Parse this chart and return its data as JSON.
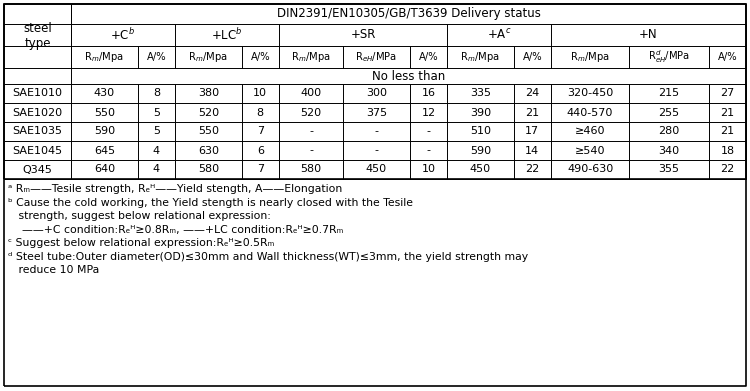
{
  "title": "DIN2391/EN10305/GB/T3639 Delivery status",
  "no_less_than": "No less than",
  "data_rows": [
    [
      "SAE1010",
      "430",
      "8",
      "380",
      "10",
      "400",
      "300",
      "16",
      "335",
      "24",
      "320-450",
      "215",
      "27"
    ],
    [
      "SAE1020",
      "550",
      "5",
      "520",
      "8",
      "520",
      "375",
      "12",
      "390",
      "21",
      "440-570",
      "255",
      "21"
    ],
    [
      "SAE1035",
      "590",
      "5",
      "550",
      "7",
      "-",
      "-",
      "-",
      "510",
      "17",
      "≥460",
      "280",
      "21"
    ],
    [
      "SAE1045",
      "645",
      "4",
      "630",
      "6",
      "-",
      "-",
      "-",
      "590",
      "14",
      "≥540",
      "340",
      "18"
    ],
    [
      "Q345",
      "640",
      "4",
      "580",
      "7",
      "580",
      "450",
      "10",
      "450",
      "22",
      "490-630",
      "355",
      "22"
    ]
  ],
  "footnote_lines": [
    [
      "a",
      " R",
      "m",
      "--Tesile strength, R",
      "eH",
      "--Yield stength, A--Elongation"
    ],
    [
      "b",
      " Cause the cold working, the Yield stength is nearly closed with the Tesile"
    ],
    [
      "",
      " strength, suggest below relational expression:"
    ],
    [
      "",
      "   --+C condition:R",
      "eH",
      "≥0.8R",
      "m",
      ", --+LC condition:R",
      "eH",
      "≥0.7R",
      "m"
    ],
    [
      "c",
      " Suggest below relational expression:R",
      "eH",
      "≥0.5R",
      "m"
    ],
    [
      "d",
      " Steel tube:Outer diameter(OD)≤30mm and Wall thickness(WT)≤3mm, the yield strength may"
    ],
    [
      "",
      " reduce 10 MPa"
    ]
  ],
  "bg_color": "#ffffff",
  "border_color": "#000000",
  "text_color": "#000000",
  "font_size": 8.0,
  "header_font_size": 8.5,
  "footnote_font_size": 7.8
}
